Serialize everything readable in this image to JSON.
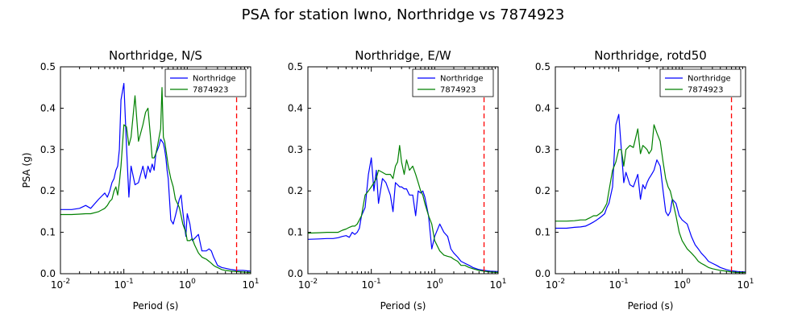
{
  "figure": {
    "suptitle": "PSA for station lwno, Northridge vs 7874923"
  },
  "chart_data": [
    {
      "type": "line",
      "title": "Northridge, N/S",
      "xlabel": "Period (s)",
      "ylabel": "PSA (g)",
      "xscale": "log",
      "xlim": [
        0.01,
        10
      ],
      "ylim": [
        0,
        0.5
      ],
      "x_ticks": [
        "10^-2",
        "10^-1",
        "10^0",
        "10^1"
      ],
      "y_ticks": [
        "0.0",
        "0.1",
        "0.2",
        "0.3",
        "0.4",
        "0.5"
      ],
      "legend_position": "top-right",
      "vline": {
        "x": 6.0,
        "color": "#ff0000",
        "style": "dashed"
      },
      "series": [
        {
          "name": "Northridge",
          "color": "#0000ff",
          "x": [
            0.01,
            0.015,
            0.02,
            0.025,
            0.03,
            0.04,
            0.05,
            0.055,
            0.06,
            0.065,
            0.07,
            0.075,
            0.08,
            0.085,
            0.09,
            0.1,
            0.11,
            0.12,
            0.13,
            0.15,
            0.17,
            0.2,
            0.22,
            0.24,
            0.26,
            0.28,
            0.3,
            0.32,
            0.34,
            0.36,
            0.38,
            0.4,
            0.42,
            0.44,
            0.46,
            0.48,
            0.5,
            0.55,
            0.6,
            0.65,
            0.7,
            0.75,
            0.8,
            0.85,
            0.9,
            0.95,
            1.0,
            1.1,
            1.2,
            1.3,
            1.5,
            1.7,
            2.0,
            2.2,
            2.4,
            2.6,
            2.8,
            3.0,
            3.5,
            4.0,
            5.0,
            6.0,
            7.5,
            10.0
          ],
          "y": [
            0.155,
            0.155,
            0.158,
            0.165,
            0.158,
            0.18,
            0.195,
            0.185,
            0.2,
            0.22,
            0.23,
            0.25,
            0.26,
            0.3,
            0.42,
            0.46,
            0.31,
            0.185,
            0.26,
            0.215,
            0.22,
            0.26,
            0.23,
            0.26,
            0.245,
            0.265,
            0.25,
            0.29,
            0.3,
            0.31,
            0.325,
            0.32,
            0.315,
            0.3,
            0.28,
            0.25,
            0.23,
            0.13,
            0.12,
            0.14,
            0.16,
            0.18,
            0.19,
            0.15,
            0.12,
            0.09,
            0.145,
            0.12,
            0.08,
            0.085,
            0.095,
            0.055,
            0.055,
            0.06,
            0.055,
            0.04,
            0.03,
            0.02,
            0.015,
            0.013,
            0.01,
            0.008,
            0.008,
            0.006
          ]
        },
        {
          "name": "7874923",
          "color": "#008000",
          "x": [
            0.01,
            0.015,
            0.02,
            0.025,
            0.03,
            0.04,
            0.05,
            0.055,
            0.06,
            0.065,
            0.07,
            0.075,
            0.08,
            0.085,
            0.09,
            0.1,
            0.11,
            0.12,
            0.13,
            0.15,
            0.17,
            0.2,
            0.22,
            0.24,
            0.26,
            0.28,
            0.3,
            0.32,
            0.34,
            0.36,
            0.38,
            0.4,
            0.42,
            0.44,
            0.46,
            0.48,
            0.5,
            0.55,
            0.6,
            0.65,
            0.7,
            0.75,
            0.8,
            0.85,
            0.9,
            0.95,
            1.0,
            1.1,
            1.2,
            1.3,
            1.5,
            1.7,
            2.0,
            2.2,
            2.4,
            2.6,
            2.8,
            3.0,
            3.5,
            4.0,
            5.0,
            6.0,
            7.5,
            10.0
          ],
          "y": [
            0.143,
            0.143,
            0.144,
            0.145,
            0.145,
            0.15,
            0.158,
            0.165,
            0.175,
            0.18,
            0.2,
            0.21,
            0.19,
            0.22,
            0.26,
            0.36,
            0.355,
            0.31,
            0.33,
            0.43,
            0.32,
            0.36,
            0.39,
            0.4,
            0.34,
            0.28,
            0.28,
            0.29,
            0.31,
            0.33,
            0.35,
            0.45,
            0.33,
            0.32,
            0.3,
            0.28,
            0.26,
            0.23,
            0.21,
            0.18,
            0.17,
            0.16,
            0.14,
            0.12,
            0.11,
            0.1,
            0.08,
            0.08,
            0.085,
            0.07,
            0.05,
            0.04,
            0.035,
            0.03,
            0.025,
            0.02,
            0.017,
            0.015,
            0.01,
            0.008,
            0.006,
            0.005,
            0.004,
            0.003
          ]
        }
      ]
    },
    {
      "type": "line",
      "title": "Northridge, E/W",
      "xlabel": "Period (s)",
      "ylabel": "",
      "xscale": "log",
      "xlim": [
        0.01,
        10
      ],
      "ylim": [
        0,
        0.5
      ],
      "x_ticks": [
        "10^-2",
        "10^-1",
        "10^0",
        "10^1"
      ],
      "y_ticks": [
        "0.0",
        "0.1",
        "0.2",
        "0.3",
        "0.4",
        "0.5"
      ],
      "legend_position": "top-right",
      "vline": {
        "x": 6.0,
        "color": "#ff0000",
        "style": "dashed"
      },
      "series": [
        {
          "name": "Northridge",
          "color": "#0000ff",
          "x": [
            0.01,
            0.015,
            0.02,
            0.025,
            0.03,
            0.035,
            0.04,
            0.045,
            0.05,
            0.055,
            0.06,
            0.065,
            0.07,
            0.08,
            0.09,
            0.1,
            0.11,
            0.12,
            0.13,
            0.15,
            0.17,
            0.2,
            0.22,
            0.24,
            0.26,
            0.28,
            0.3,
            0.33,
            0.36,
            0.4,
            0.45,
            0.5,
            0.55,
            0.6,
            0.65,
            0.7,
            0.8,
            0.9,
            1.0,
            1.2,
            1.4,
            1.6,
            1.8,
            2.0,
            2.3,
            2.6,
            3.0,
            3.5,
            4.0,
            5.0,
            6.0,
            7.5,
            10.0
          ],
          "y": [
            0.083,
            0.084,
            0.085,
            0.085,
            0.087,
            0.09,
            0.092,
            0.088,
            0.1,
            0.095,
            0.1,
            0.11,
            0.14,
            0.16,
            0.24,
            0.28,
            0.2,
            0.25,
            0.17,
            0.23,
            0.22,
            0.19,
            0.15,
            0.22,
            0.215,
            0.21,
            0.21,
            0.205,
            0.205,
            0.19,
            0.19,
            0.14,
            0.2,
            0.195,
            0.2,
            0.185,
            0.14,
            0.06,
            0.09,
            0.12,
            0.1,
            0.09,
            0.06,
            0.05,
            0.04,
            0.03,
            0.025,
            0.02,
            0.015,
            0.01,
            0.008,
            0.006,
            0.005
          ]
        },
        {
          "name": "7874923",
          "color": "#008000",
          "x": [
            0.01,
            0.015,
            0.02,
            0.025,
            0.03,
            0.035,
            0.04,
            0.045,
            0.05,
            0.055,
            0.06,
            0.065,
            0.07,
            0.08,
            0.09,
            0.1,
            0.11,
            0.12,
            0.13,
            0.15,
            0.17,
            0.2,
            0.22,
            0.24,
            0.26,
            0.28,
            0.3,
            0.33,
            0.36,
            0.4,
            0.45,
            0.5,
            0.55,
            0.6,
            0.65,
            0.7,
            0.8,
            0.9,
            1.0,
            1.2,
            1.4,
            1.6,
            1.8,
            2.0,
            2.3,
            2.6,
            3.0,
            3.5,
            4.0,
            5.0,
            6.0,
            7.5,
            10.0
          ],
          "y": [
            0.098,
            0.099,
            0.1,
            0.1,
            0.1,
            0.105,
            0.108,
            0.112,
            0.115,
            0.115,
            0.12,
            0.13,
            0.14,
            0.19,
            0.2,
            0.21,
            0.22,
            0.23,
            0.25,
            0.245,
            0.24,
            0.24,
            0.23,
            0.26,
            0.27,
            0.31,
            0.27,
            0.24,
            0.275,
            0.25,
            0.26,
            0.24,
            0.22,
            0.2,
            0.19,
            0.17,
            0.14,
            0.12,
            0.08,
            0.055,
            0.045,
            0.042,
            0.04,
            0.035,
            0.03,
            0.02,
            0.02,
            0.015,
            0.012,
            0.008,
            0.006,
            0.004,
            0.003
          ]
        }
      ]
    },
    {
      "type": "line",
      "title": "Northridge, rotd50",
      "xlabel": "Period (s)",
      "ylabel": "",
      "xscale": "log",
      "xlim": [
        0.01,
        10
      ],
      "ylim": [
        0,
        0.5
      ],
      "x_ticks": [
        "10^-2",
        "10^-1",
        "10^0",
        "10^1"
      ],
      "y_ticks": [
        "0.0",
        "0.1",
        "0.2",
        "0.3",
        "0.4",
        "0.5"
      ],
      "legend_position": "top-right",
      "vline": {
        "x": 6.0,
        "color": "#ff0000",
        "style": "dashed"
      },
      "series": [
        {
          "name": "Northridge",
          "color": "#0000ff",
          "x": [
            0.01,
            0.015,
            0.02,
            0.025,
            0.03,
            0.035,
            0.04,
            0.045,
            0.05,
            0.055,
            0.06,
            0.065,
            0.07,
            0.08,
            0.09,
            0.1,
            0.11,
            0.12,
            0.13,
            0.15,
            0.17,
            0.2,
            0.22,
            0.24,
            0.26,
            0.28,
            0.3,
            0.33,
            0.36,
            0.4,
            0.45,
            0.5,
            0.55,
            0.6,
            0.65,
            0.7,
            0.8,
            0.9,
            1.0,
            1.2,
            1.4,
            1.6,
            1.8,
            2.0,
            2.3,
            2.6,
            3.0,
            3.5,
            4.0,
            5.0,
            6.0,
            7.5,
            10.0
          ],
          "y": [
            0.11,
            0.11,
            0.112,
            0.113,
            0.115,
            0.12,
            0.125,
            0.13,
            0.135,
            0.14,
            0.145,
            0.16,
            0.17,
            0.21,
            0.36,
            0.385,
            0.3,
            0.22,
            0.245,
            0.215,
            0.21,
            0.24,
            0.18,
            0.215,
            0.205,
            0.22,
            0.23,
            0.24,
            0.25,
            0.275,
            0.26,
            0.2,
            0.15,
            0.14,
            0.15,
            0.18,
            0.17,
            0.14,
            0.13,
            0.12,
            0.09,
            0.07,
            0.06,
            0.05,
            0.04,
            0.03,
            0.025,
            0.02,
            0.015,
            0.01,
            0.007,
            0.005,
            0.004
          ]
        },
        {
          "name": "7874923",
          "color": "#008000",
          "x": [
            0.01,
            0.015,
            0.02,
            0.025,
            0.03,
            0.035,
            0.04,
            0.045,
            0.05,
            0.055,
            0.06,
            0.065,
            0.07,
            0.08,
            0.09,
            0.1,
            0.11,
            0.12,
            0.13,
            0.15,
            0.17,
            0.2,
            0.22,
            0.24,
            0.26,
            0.28,
            0.3,
            0.33,
            0.36,
            0.4,
            0.45,
            0.5,
            0.55,
            0.6,
            0.65,
            0.7,
            0.8,
            0.9,
            1.0,
            1.2,
            1.4,
            1.6,
            1.8,
            2.0,
            2.3,
            2.6,
            3.0,
            3.5,
            4.0,
            5.0,
            6.0,
            7.5,
            10.0
          ],
          "y": [
            0.127,
            0.127,
            0.128,
            0.13,
            0.13,
            0.135,
            0.14,
            0.14,
            0.145,
            0.15,
            0.16,
            0.17,
            0.2,
            0.25,
            0.27,
            0.3,
            0.3,
            0.26,
            0.3,
            0.31,
            0.305,
            0.35,
            0.29,
            0.31,
            0.305,
            0.3,
            0.29,
            0.3,
            0.36,
            0.34,
            0.32,
            0.27,
            0.23,
            0.21,
            0.2,
            0.18,
            0.14,
            0.1,
            0.08,
            0.06,
            0.05,
            0.04,
            0.03,
            0.025,
            0.02,
            0.015,
            0.012,
            0.01,
            0.008,
            0.006,
            0.004,
            0.003,
            0.003
          ]
        }
      ]
    }
  ]
}
